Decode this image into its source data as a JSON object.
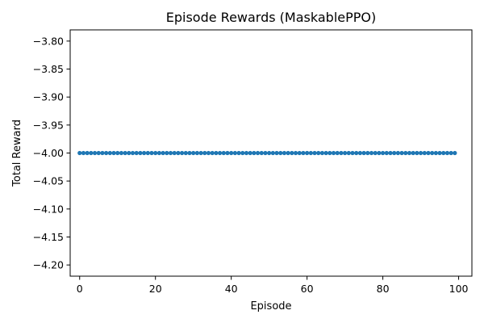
{
  "chart_data": {
    "type": "line",
    "title": "Episode Rewards (MaskablePPO)",
    "xlabel": "Episode",
    "ylabel": "Total Reward",
    "xlim": [
      -2.5,
      103.5
    ],
    "ylim": [
      -4.22,
      -3.78
    ],
    "xticks": [
      0,
      20,
      40,
      60,
      80,
      100
    ],
    "xtick_labels": [
      "0",
      "20",
      "40",
      "60",
      "80",
      "100"
    ],
    "yticks": [
      -3.8,
      -3.85,
      -3.9,
      -3.95,
      -4.0,
      -4.05,
      -4.1,
      -4.15,
      -4.2
    ],
    "ytick_labels": [
      "−3.80",
      "−3.85",
      "−3.90",
      "−3.95",
      "−4.00",
      "−4.05",
      "−4.10",
      "−4.15",
      "−4.20"
    ],
    "grid": false,
    "marker": "circle",
    "series": [
      {
        "color": "#1f77b4",
        "x_start": 0,
        "x_end": 99,
        "x_step": 1,
        "y_constant": -4.0
      }
    ]
  }
}
